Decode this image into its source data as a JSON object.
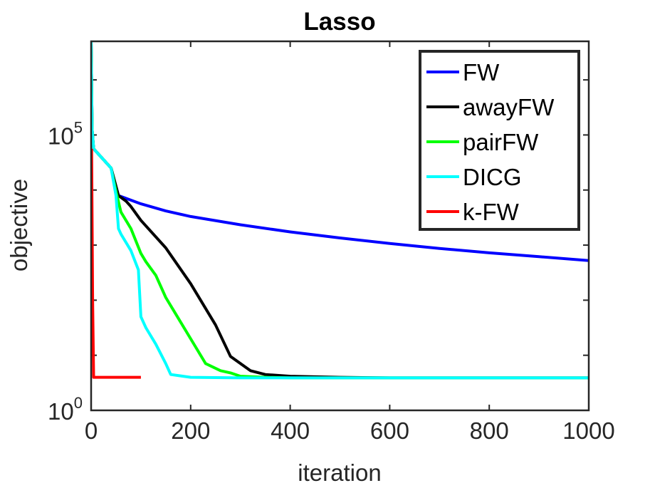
{
  "chart_data": {
    "type": "line",
    "title": "Lasso",
    "xlabel": "iteration",
    "ylabel": "objective",
    "xlim": [
      0,
      1000
    ],
    "ylog": true,
    "ylim_exp": [
      0,
      6.7
    ],
    "xticks": [
      {
        "value": 0,
        "label": "0"
      },
      {
        "value": 200,
        "label": "200"
      },
      {
        "value": 400,
        "label": "400"
      },
      {
        "value": 600,
        "label": "600"
      },
      {
        "value": 800,
        "label": "800"
      },
      {
        "value": 1000,
        "label": "1000"
      }
    ],
    "yticks": [
      {
        "exp": 0,
        "base": "10",
        "sup": "0"
      },
      {
        "exp": 5,
        "base": "10",
        "sup": "5"
      }
    ],
    "minor_y_exps": [
      1,
      2,
      3,
      4,
      6
    ],
    "legend_position": "top-right",
    "series": [
      {
        "name": "FW",
        "color": "#0000ff",
        "x": [
          0,
          2,
          5,
          20,
          40,
          55,
          100,
          150,
          200,
          300,
          400,
          500,
          600,
          700,
          800,
          900,
          1000
        ],
        "y": [
          6.7,
          5.1,
          4.75,
          4.6,
          4.4,
          3.9,
          3.75,
          3.62,
          3.52,
          3.37,
          3.24,
          3.13,
          3.03,
          2.94,
          2.86,
          2.79,
          2.72
        ]
      },
      {
        "name": "awayFW",
        "color": "#000000",
        "x": [
          0,
          2,
          5,
          20,
          40,
          55,
          70,
          80,
          100,
          150,
          200,
          250,
          280,
          300,
          320,
          350,
          400,
          500,
          600,
          1000
        ],
        "y": [
          6.7,
          5.1,
          4.75,
          4.6,
          4.4,
          3.9,
          3.8,
          3.7,
          3.45,
          2.95,
          2.3,
          1.55,
          0.98,
          0.85,
          0.72,
          0.65,
          0.62,
          0.6,
          0.59,
          0.59
        ]
      },
      {
        "name": "pairFW",
        "color": "#00ff00",
        "x": [
          0,
          2,
          5,
          20,
          40,
          52,
          60,
          80,
          100,
          110,
          130,
          150,
          170,
          200,
          230,
          260,
          280,
          300,
          350,
          400,
          600,
          1000
        ],
        "y": [
          6.7,
          5.1,
          4.75,
          4.6,
          4.4,
          3.9,
          3.6,
          3.3,
          2.85,
          2.7,
          2.45,
          2.05,
          1.75,
          1.3,
          0.85,
          0.72,
          0.68,
          0.62,
          0.6,
          0.59,
          0.59,
          0.59
        ]
      },
      {
        "name": "DICG",
        "color": "#00ffff",
        "x": [
          0,
          2,
          5,
          20,
          40,
          50,
          55,
          60,
          70,
          80,
          95,
          100,
          105,
          110,
          130,
          150,
          160,
          200,
          300,
          1000
        ],
        "y": [
          6.7,
          5.1,
          4.75,
          4.6,
          4.4,
          3.9,
          3.3,
          3.2,
          3.05,
          2.9,
          2.55,
          1.7,
          1.6,
          1.5,
          1.2,
          0.85,
          0.65,
          0.6,
          0.59,
          0.59
        ]
      },
      {
        "name": "k-FW",
        "color": "#ff0000",
        "x": [
          1,
          3,
          5,
          100
        ],
        "y": [
          4.75,
          2.0,
          0.6,
          0.6
        ]
      }
    ]
  }
}
